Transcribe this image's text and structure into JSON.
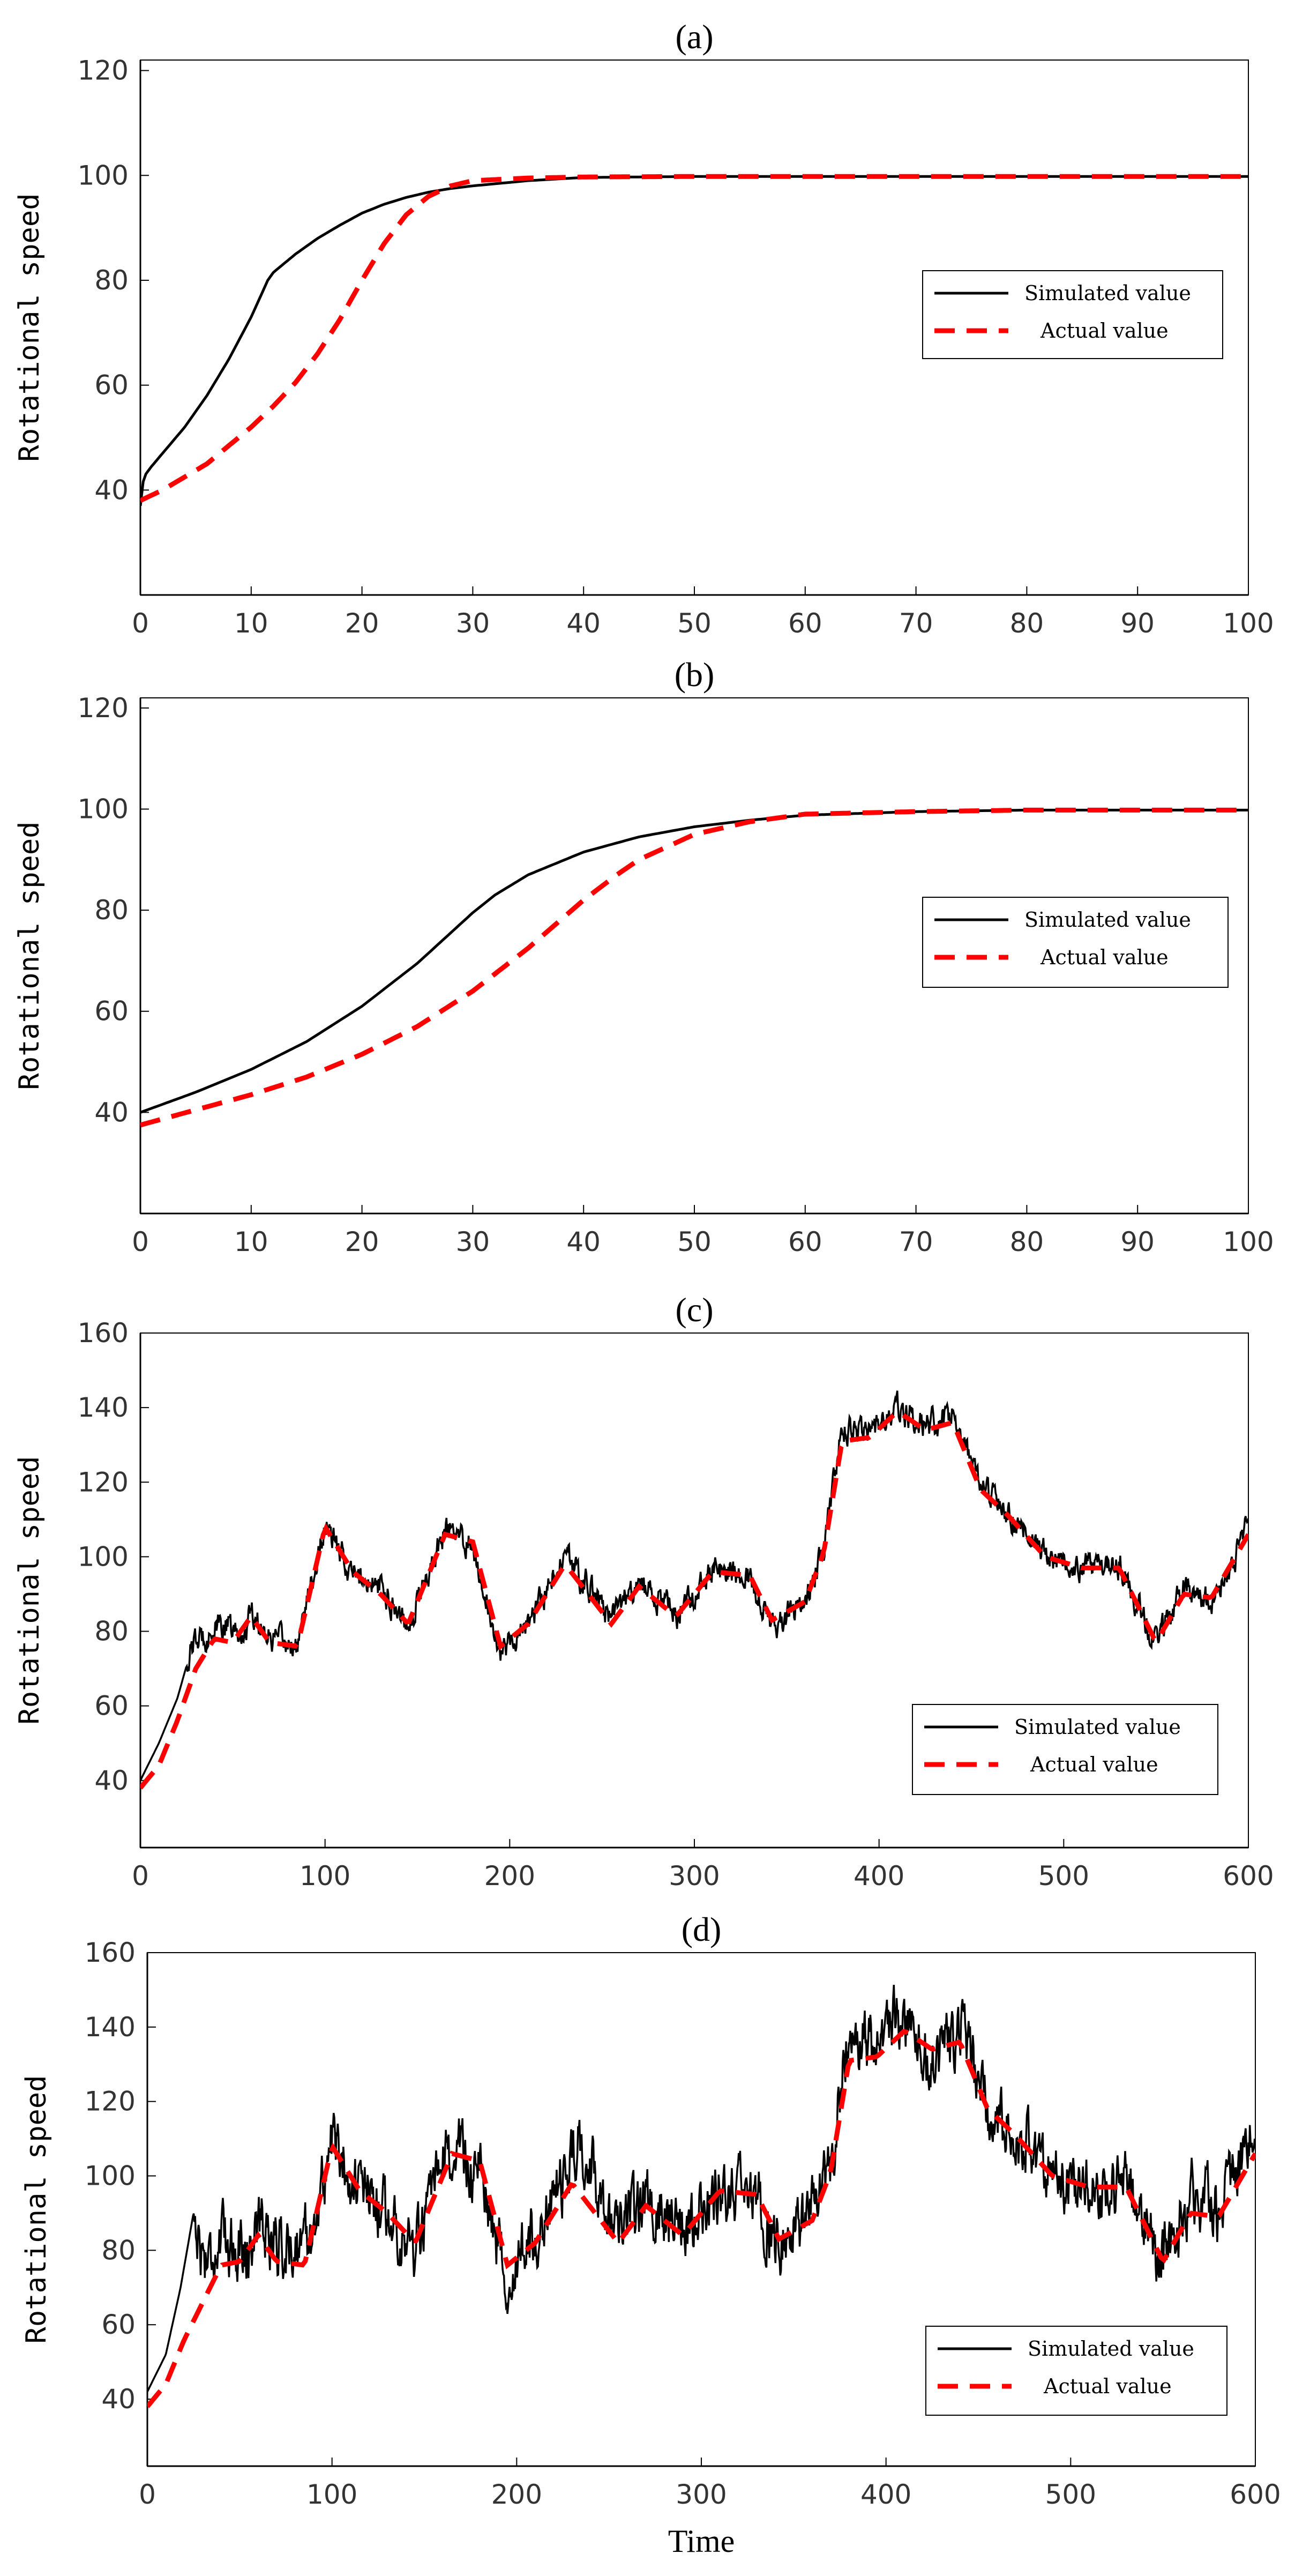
{
  "chart_data": [
    {
      "type": "line",
      "title": "(a)",
      "xlabel": "",
      "ylabel": "Rotational speed",
      "xlim": [
        0,
        100
      ],
      "ylim": [
        20,
        122
      ],
      "xticks": [
        0,
        10,
        20,
        30,
        40,
        50,
        60,
        70,
        80,
        90,
        100
      ],
      "yticks": [
        40,
        60,
        80,
        100,
        120
      ],
      "legend": "center-right",
      "series": [
        {
          "name": "Simulated value",
          "color": "#000000",
          "style": "solid",
          "x": [
            0,
            0.3,
            1,
            2,
            4,
            6,
            8,
            10,
            11.5,
            12,
            14,
            16,
            18,
            20,
            22,
            24,
            26,
            28,
            30,
            35,
            40,
            50,
            60,
            70,
            80,
            90,
            100
          ],
          "y": [
            37,
            42.5,
            44.5,
            47,
            52,
            58,
            65,
            73,
            80,
            81.5,
            85,
            88,
            90.5,
            92.8,
            94.5,
            95.8,
            96.8,
            97.5,
            98,
            99,
            99.6,
            99.8,
            99.8,
            99.8,
            99.8,
            99.8,
            99.8
          ]
        },
        {
          "name": "Actual value",
          "color": "#ff0000",
          "style": "dashed",
          "x": [
            0,
            2,
            4,
            6,
            8,
            10,
            12,
            14,
            16,
            18,
            20,
            22,
            24,
            26,
            28,
            30,
            35,
            40,
            50,
            60,
            70,
            80,
            90,
            100
          ],
          "y": [
            38,
            40,
            42.5,
            45,
            48.5,
            52,
            56,
            60.5,
            66,
            72.5,
            80,
            87,
            92.5,
            96,
            98,
            99,
            99.5,
            99.7,
            99.8,
            99.8,
            99.8,
            99.8,
            99.8,
            99.8
          ]
        }
      ]
    },
    {
      "type": "line",
      "title": "(b)",
      "xlabel": "",
      "ylabel": "Rotational speed",
      "xlim": [
        0,
        100
      ],
      "ylim": [
        20,
        122
      ],
      "xticks": [
        0,
        10,
        20,
        30,
        40,
        50,
        60,
        70,
        80,
        90,
        100
      ],
      "yticks": [
        40,
        60,
        80,
        100,
        120
      ],
      "legend": "center-right",
      "series": [
        {
          "name": "Simulated value",
          "color": "#000000",
          "style": "solid",
          "x": [
            0,
            5,
            10,
            15,
            20,
            25,
            28,
            30,
            32,
            35,
            40,
            45,
            50,
            55,
            60,
            70,
            80,
            90,
            100
          ],
          "y": [
            40,
            44,
            48.5,
            54,
            61,
            69.5,
            75.5,
            79.5,
            83,
            87,
            91.5,
            94.5,
            96.5,
            97.8,
            98.8,
            99.5,
            99.8,
            99.8,
            99.8
          ]
        },
        {
          "name": "Actual value",
          "color": "#ff0000",
          "style": "dashed",
          "x": [
            0,
            5,
            10,
            15,
            20,
            25,
            30,
            35,
            40,
            43,
            45,
            50,
            55,
            60,
            70,
            80,
            90,
            100
          ],
          "y": [
            37.5,
            40.5,
            43.5,
            47,
            51.5,
            57,
            64,
            72.5,
            82,
            87,
            90,
            95,
            97.5,
            99,
            99.5,
            99.8,
            99.8,
            99.8
          ]
        }
      ]
    },
    {
      "type": "line",
      "title": "(c)",
      "xlabel": "",
      "ylabel": "Rotational speed",
      "xlim": [
        0,
        600
      ],
      "ylim": [
        22,
        160
      ],
      "xticks": [
        0,
        100,
        200,
        300,
        400,
        500,
        600
      ],
      "yticks": [
        40,
        60,
        80,
        100,
        120,
        140,
        160
      ],
      "legend": "bottom-right",
      "series": [
        {
          "name": "Simulated value",
          "color": "#000000",
          "style": "solid",
          "noise_amplitude": 3,
          "x": [
            0,
            10,
            20,
            28,
            35,
            45,
            55,
            60,
            70,
            85,
            100,
            115,
            130,
            145,
            165,
            180,
            195,
            210,
            230,
            255,
            270,
            290,
            310,
            330,
            342,
            360,
            370,
            380,
            395,
            410,
            425,
            440,
            455,
            470,
            490,
            510,
            530,
            550,
            565,
            580,
            600
          ],
          "y": [
            40,
            50,
            62,
            76,
            79,
            82,
            78,
            86,
            78,
            76,
            108,
            95,
            92,
            82,
            107,
            103,
            75,
            82,
            100,
            84,
            93,
            84,
            97,
            95,
            81,
            88,
            103,
            133,
            134,
            140,
            135,
            138,
            118,
            112,
            100,
            97,
            98,
            77,
            92,
            88,
            108
          ]
        },
        {
          "name": "Actual value",
          "color": "#ff0000",
          "style": "dashed",
          "x": [
            0,
            10,
            20,
            30,
            40,
            50,
            60,
            70,
            85,
            100,
            115,
            130,
            145,
            165,
            180,
            195,
            210,
            230,
            255,
            270,
            290,
            310,
            330,
            342,
            360,
            370,
            380,
            395,
            410,
            425,
            440,
            455,
            470,
            490,
            510,
            530,
            550,
            565,
            580,
            600
          ],
          "y": [
            38,
            44,
            56,
            70,
            78,
            77,
            84,
            77,
            76,
            108,
            96,
            90,
            82,
            106,
            104,
            76,
            82,
            98,
            82,
            92,
            84,
            96,
            95,
            83,
            88,
            101,
            131,
            132,
            139,
            134,
            136,
            118,
            111,
            100,
            97,
            97,
            77,
            90,
            89,
            106
          ]
        }
      ]
    },
    {
      "type": "line",
      "title": "(d)",
      "xlabel": "Time",
      "ylabel": "Rotational speed",
      "xlim": [
        0,
        600
      ],
      "ylim": [
        22,
        160
      ],
      "xticks": [
        0,
        100,
        200,
        300,
        400,
        500,
        600
      ],
      "yticks": [
        40,
        60,
        80,
        100,
        120,
        140,
        160
      ],
      "legend": "bottom-right",
      "series": [
        {
          "name": "Simulated value",
          "color": "#000000",
          "style": "solid",
          "noise_amplitude": 7,
          "x": [
            0,
            10,
            18,
            25,
            30,
            45,
            55,
            60,
            75,
            90,
            100,
            115,
            130,
            145,
            165,
            180,
            195,
            210,
            235,
            255,
            270,
            290,
            310,
            330,
            342,
            360,
            370,
            380,
            395,
            410,
            425,
            440,
            455,
            470,
            490,
            510,
            530,
            550,
            565,
            580,
            600
          ],
          "y": [
            42,
            52,
            70,
            90,
            78,
            83,
            80,
            88,
            80,
            85,
            110,
            96,
            90,
            80,
            108,
            100,
            74,
            83,
            110,
            82,
            95,
            86,
            96,
            94,
            80,
            90,
            104,
            138,
            134,
            144,
            132,
            140,
            118,
            112,
            100,
            97,
            98,
            77,
            95,
            90,
            112
          ]
        },
        {
          "name": "Actual value",
          "color": "#ff0000",
          "style": "dashed",
          "x": [
            0,
            10,
            20,
            30,
            40,
            50,
            60,
            70,
            85,
            100,
            115,
            130,
            145,
            165,
            180,
            195,
            210,
            230,
            255,
            270,
            290,
            310,
            330,
            342,
            360,
            370,
            380,
            395,
            410,
            425,
            440,
            455,
            470,
            490,
            510,
            530,
            550,
            565,
            580,
            600
          ],
          "y": [
            38,
            44,
            56,
            66,
            76,
            77,
            84,
            77,
            76,
            108,
            96,
            90,
            82,
            106,
            104,
            76,
            82,
            98,
            82,
            92,
            84,
            96,
            95,
            83,
            88,
            101,
            131,
            132,
            139,
            134,
            136,
            118,
            111,
            100,
            97,
            97,
            77,
            90,
            89,
            106
          ]
        }
      ]
    }
  ]
}
